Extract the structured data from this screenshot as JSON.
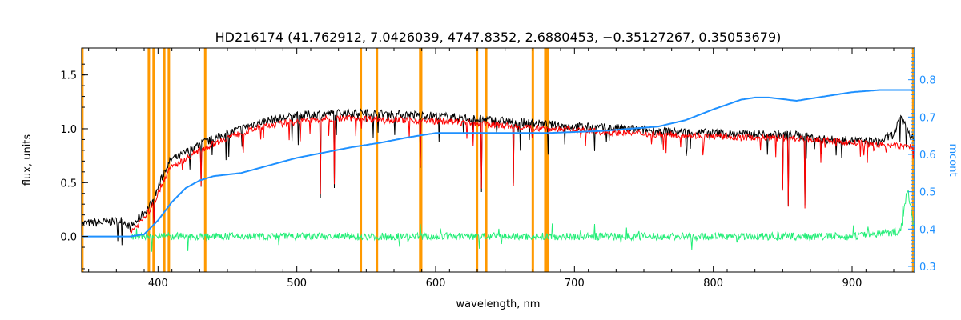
{
  "chart_data": {
    "type": "line",
    "title": "HD216174   (41.762912, 7.0426039, 4747.8352, 2.6880453, −0.35127267, 0.35053679)",
    "xlabel": "wavelength, nm",
    "ylabel": "flux, units",
    "y2label": "mcont",
    "xlim": [
      345,
      945
    ],
    "ylim": [
      -0.33,
      1.75
    ],
    "y2lim": [
      0.285,
      0.885
    ],
    "xticks": [
      400,
      500,
      600,
      700,
      800,
      900
    ],
    "yticks": [
      0.0,
      0.5,
      1.0,
      1.5
    ],
    "y2ticks": [
      0.3,
      0.4,
      0.5,
      0.6,
      0.7,
      0.8
    ],
    "grid": false,
    "colors": {
      "observed": "#000000",
      "model": "#ff0000",
      "residual": "#22ee77",
      "continuum": "#1e90ff",
      "mask": "#ff9900",
      "axis_right": "#1e90ff"
    },
    "masked_lines_nm": [
      345.5,
      393.4,
      396.8,
      404.5,
      407.8,
      434.0,
      546.1,
      557.7,
      588.9,
      589.6,
      629.8,
      636.4,
      670.0,
      679.0,
      680.5,
      944.0
    ],
    "series": [
      {
        "key": "observed",
        "x": [
          345,
          360,
          375,
          380,
          385,
          390,
          395,
          400,
          405,
          410,
          415,
          420,
          425,
          430,
          440,
          450,
          460,
          470,
          480,
          490,
          500,
          520,
          540,
          560,
          580,
          600,
          620,
          640,
          660,
          680,
          700,
          720,
          740,
          760,
          780,
          800,
          820,
          840,
          860,
          880,
          900,
          920,
          930,
          935,
          945
        ],
        "y": [
          0.12,
          0.13,
          0.15,
          0.08,
          0.15,
          0.22,
          0.3,
          0.45,
          0.62,
          0.72,
          0.74,
          0.78,
          0.82,
          0.86,
          0.9,
          0.96,
          1.0,
          1.05,
          1.08,
          1.1,
          1.12,
          1.14,
          1.15,
          1.14,
          1.13,
          1.12,
          1.1,
          1.08,
          1.06,
          1.04,
          1.02,
          1.01,
          1.0,
          0.98,
          0.97,
          0.96,
          0.95,
          0.95,
          0.94,
          0.9,
          0.89,
          0.88,
          0.95,
          1.1,
          0.88
        ]
      },
      {
        "key": "model",
        "x": [
          380,
          385,
          390,
          395,
          400,
          405,
          410,
          415,
          420,
          425,
          430,
          440,
          450,
          460,
          470,
          480,
          490,
          500,
          520,
          540,
          560,
          580,
          600,
          620,
          640,
          660,
          680,
          700,
          720,
          740,
          760,
          780,
          800,
          820,
          840,
          860,
          880,
          900,
          920,
          945
        ],
        "y": [
          0.05,
          0.1,
          0.18,
          0.26,
          0.4,
          0.55,
          0.65,
          0.68,
          0.72,
          0.76,
          0.8,
          0.86,
          0.92,
          0.96,
          1.0,
          1.03,
          1.05,
          1.07,
          1.09,
          1.1,
          1.09,
          1.08,
          1.07,
          1.06,
          1.04,
          1.02,
          1.0,
          0.99,
          0.97,
          0.96,
          0.95,
          0.94,
          0.93,
          0.92,
          0.92,
          0.91,
          0.89,
          0.87,
          0.85,
          0.83
        ]
      },
      {
        "key": "continuum",
        "x": [
          345,
          380,
          390,
          400,
          410,
          420,
          430,
          440,
          460,
          480,
          500,
          520,
          540,
          560,
          580,
          600,
          620,
          640,
          660,
          680,
          700,
          720,
          740,
          760,
          780,
          800,
          820,
          830,
          840,
          860,
          880,
          900,
          920,
          940,
          945
        ],
        "y": [
          0.0,
          0.0,
          0.02,
          0.15,
          0.32,
          0.45,
          0.52,
          0.56,
          0.59,
          0.66,
          0.73,
          0.78,
          0.83,
          0.87,
          0.92,
          0.96,
          0.96,
          0.96,
          0.96,
          0.96,
          0.97,
          0.98,
          1.0,
          1.02,
          1.08,
          1.18,
          1.27,
          1.29,
          1.29,
          1.26,
          1.3,
          1.34,
          1.36,
          1.36,
          1.36
        ]
      },
      {
        "key": "residual",
        "x": [
          380,
          420,
          460,
          500,
          540,
          580,
          620,
          660,
          700,
          740,
          780,
          820,
          860,
          900,
          935,
          940,
          945
        ],
        "y": [
          0.0,
          0.0,
          0.0,
          0.0,
          0.0,
          0.0,
          0.0,
          0.0,
          0.0,
          0.0,
          0.0,
          0.0,
          0.0,
          0.0,
          0.05,
          0.45,
          0.05
        ]
      }
    ],
    "absorption_dips": [
      {
        "x": 397,
        "y": 0.1
      },
      {
        "x": 431,
        "y": 0.45
      },
      {
        "x": 517,
        "y": 0.35
      },
      {
        "x": 527,
        "y": 0.45
      },
      {
        "x": 589,
        "y": 0.62
      },
      {
        "x": 633,
        "y": 0.4
      },
      {
        "x": 656,
        "y": 0.45
      },
      {
        "x": 850,
        "y": 0.4
      },
      {
        "x": 854,
        "y": 0.27
      },
      {
        "x": 866,
        "y": 0.25
      }
    ]
  }
}
